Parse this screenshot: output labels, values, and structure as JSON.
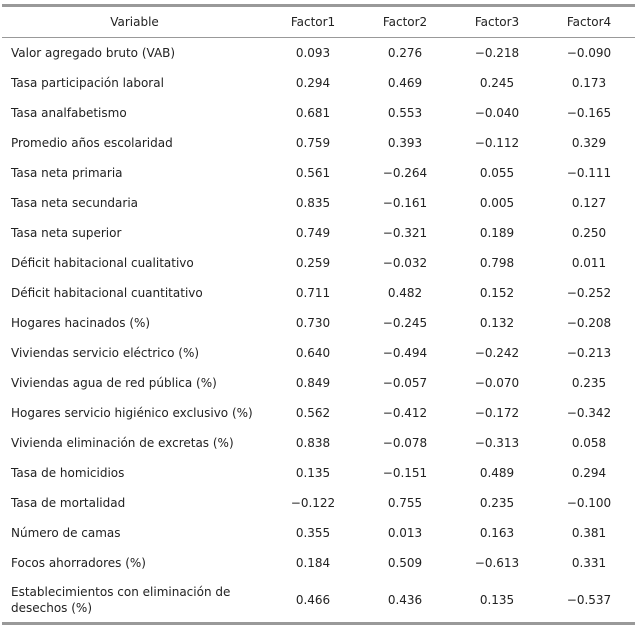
{
  "table": {
    "header": [
      "Variable",
      "Factor1",
      "Factor2",
      "Factor3",
      "Factor4"
    ],
    "rows": [
      [
        "Valor agregado bruto (VAB)",
        "0.093",
        "0.276",
        "−0.218",
        "−0.090"
      ],
      [
        "Tasa participación laboral",
        "0.294",
        "0.469",
        "0.245",
        "0.173"
      ],
      [
        "Tasa analfabetismo",
        "0.681",
        "0.553",
        "−0.040",
        "−0.165"
      ],
      [
        "Promedio años escolaridad",
        "0.759",
        "0.393",
        "−0.112",
        "0.329"
      ],
      [
        "Tasa neta primaria",
        "0.561",
        "−0.264",
        "0.055",
        "−0.111"
      ],
      [
        "Tasa neta secundaria",
        "0.835",
        "−0.161",
        "0.005",
        "0.127"
      ],
      [
        "Tasa neta superior",
        "0.749",
        "−0.321",
        "0.189",
        "0.250"
      ],
      [
        "Déficit habitacional cualitativo",
        "0.259",
        "−0.032",
        "0.798",
        "0.011"
      ],
      [
        "Déficit habitacional cuantitativo",
        "0.711",
        "0.482",
        "0.152",
        "−0.252"
      ],
      [
        "Hogares hacinados (%)",
        "0.730",
        "−0.245",
        "0.132",
        "−0.208"
      ],
      [
        "Viviendas servicio eléctrico (%)",
        "0.640",
        "−0.494",
        "−0.242",
        "−0.213"
      ],
      [
        "Viviendas agua de red pública (%)",
        "0.849",
        "−0.057",
        "−0.070",
        "0.235"
      ],
      [
        "Hogares servicio higiénico exclusivo (%)",
        "0.562",
        "−0.412",
        "−0.172",
        "−0.342"
      ],
      [
        "Vivienda eliminación de excretas (%)",
        "0.838",
        "−0.078",
        "−0.313",
        "0.058"
      ],
      [
        "Tasa de homicidios",
        "0.135",
        "−0.151",
        "0.489",
        "0.294"
      ],
      [
        "Tasa de mortalidad",
        "−0.122",
        "0.755",
        "0.235",
        "−0.100"
      ],
      [
        "Número de camas",
        "0.355",
        "0.013",
        "0.163",
        "0.381"
      ],
      [
        "Focos ahorradores (%)",
        "0.184",
        "0.509",
        "−0.613",
        "0.331"
      ],
      [
        "Establecimientos con eliminación de desechos (%)",
        "0.466",
        "0.436",
        "0.135",
        "−0.537"
      ]
    ]
  }
}
